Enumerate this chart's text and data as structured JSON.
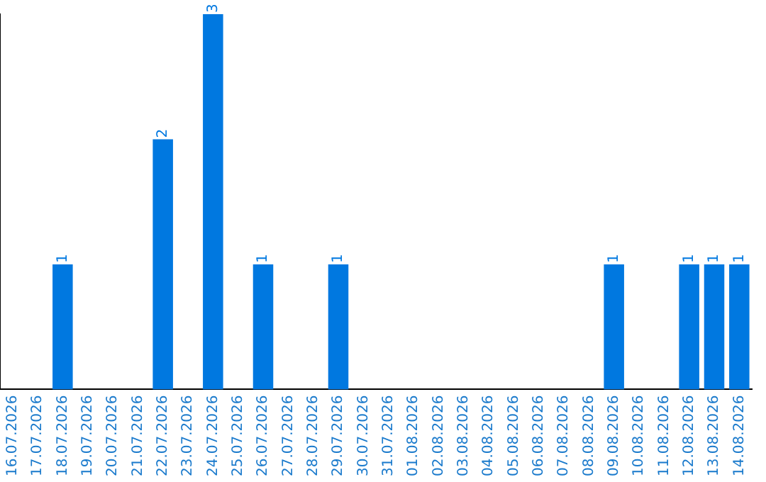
{
  "chart_data": {
    "type": "bar",
    "categories": [
      "16.07.2026",
      "17.07.2026",
      "18.07.2026",
      "19.07.2026",
      "20.07.2026",
      "21.07.2026",
      "22.07.2026",
      "23.07.2026",
      "24.07.2026",
      "25.07.2026",
      "26.07.2026",
      "27.07.2026",
      "28.07.2026",
      "29.07.2026",
      "30.07.2026",
      "31.07.2026",
      "01.08.2026",
      "02.08.2026",
      "03.08.2026",
      "04.08.2026",
      "05.08.2026",
      "06.08.2026",
      "07.08.2026",
      "08.08.2026",
      "09.08.2026",
      "10.08.2026",
      "11.08.2026",
      "12.08.2026",
      "13.08.2026",
      "14.08.2026"
    ],
    "values": [
      0,
      0,
      1,
      0,
      0,
      0,
      2,
      0,
      3,
      0,
      1,
      0,
      0,
      1,
      0,
      0,
      0,
      0,
      0,
      0,
      0,
      0,
      0,
      0,
      1,
      0,
      0,
      1,
      1,
      1
    ],
    "value_labels": [
      null,
      null,
      "1",
      null,
      null,
      null,
      "2",
      null,
      "3",
      null,
      "1",
      null,
      null,
      "1",
      null,
      null,
      null,
      null,
      null,
      null,
      null,
      null,
      null,
      null,
      "1",
      null,
      null,
      "1",
      "1",
      "1"
    ],
    "color": "#0078e0",
    "tick_labels": "x",
    "grid": false,
    "legend": false
  }
}
